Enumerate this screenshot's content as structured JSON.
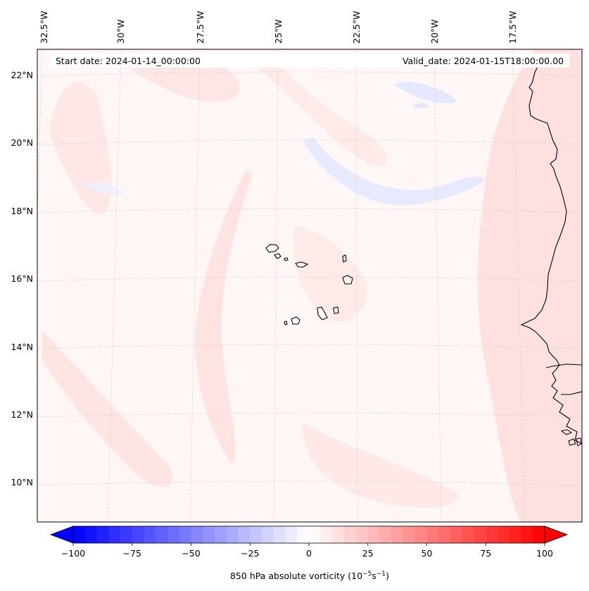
{
  "header": {
    "start_date": "Start date: 2024-01-14_00:00:00",
    "valid_date": "Valid_date: 2024-01-15T18:00:00.00"
  },
  "longitude_labels": [
    "32.5°W",
    "30°W",
    "27.5°W",
    "25°W",
    "22.5°W",
    "20°W",
    "17.5°W"
  ],
  "latitude_labels": [
    "22°N",
    "20°N",
    "18°N",
    "16°N",
    "14°N",
    "12°N",
    "10°N"
  ],
  "colorbar": {
    "label_main": "850 hPa absolute vorticity (10",
    "label_exp1": "−5",
    "label_mid": "s",
    "label_exp2": "−1",
    "label_end": ")",
    "min": -100,
    "max": 100,
    "step": 5,
    "ticks": [
      "−100",
      "−75",
      "−50",
      "−25",
      "0",
      "25",
      "50",
      "75",
      "100"
    ],
    "low_color": "#0000ff",
    "mid_color": "#ffffff",
    "high_color": "#ff0000"
  },
  "colors": {
    "background_field": "#fff6f6",
    "positive_band": "#ffe2e2",
    "negative_band": "#e6e9ff",
    "coastline": "#000000",
    "gridline": "#c8c8c8"
  }
}
